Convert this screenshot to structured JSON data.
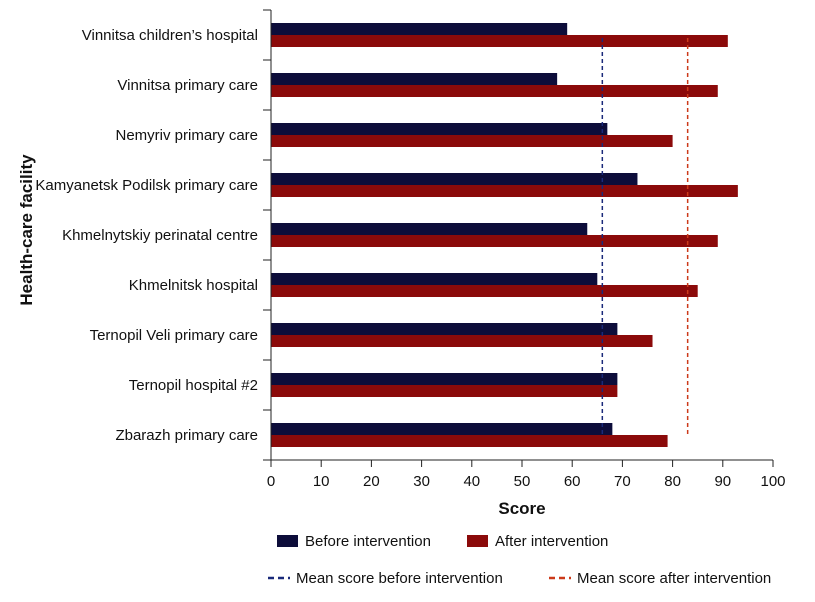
{
  "chart_data": {
    "type": "bar",
    "orientation": "horizontal",
    "title": "",
    "xlabel": "Score",
    "ylabel": "Health-care facility",
    "xlim": [
      0,
      100
    ],
    "xticks": [
      0,
      10,
      20,
      30,
      40,
      50,
      60,
      70,
      80,
      90,
      100
    ],
    "categories": [
      "Vinnitsa children’s hospital",
      "Vinnitsa primary care",
      "Nemyriv primary care",
      "Kamyanetsk Podilsk primary care",
      "Khmelnytskiy perinatal centre",
      "Khmelnitsk hospital",
      "Ternopil Veli primary care",
      "Ternopil hospital #2",
      "Zbarazh primary care"
    ],
    "series": [
      {
        "name": "Before intervention",
        "color": "#0d0d3a",
        "values": [
          59,
          57,
          67,
          73,
          63,
          65,
          69,
          69,
          68
        ]
      },
      {
        "name": "After intervention",
        "color": "#8b0a0a",
        "values": [
          91,
          89,
          80,
          93,
          89,
          85,
          76,
          69,
          79
        ]
      }
    ],
    "reference_lines": [
      {
        "name": "Mean score before intervention",
        "value": 66,
        "color": "#1a2a7a",
        "style": "dashed"
      },
      {
        "name": "Mean score after intervention",
        "value": 83,
        "color": "#cc3a1a",
        "style": "dashed"
      }
    ],
    "legend_position": "bottom"
  }
}
